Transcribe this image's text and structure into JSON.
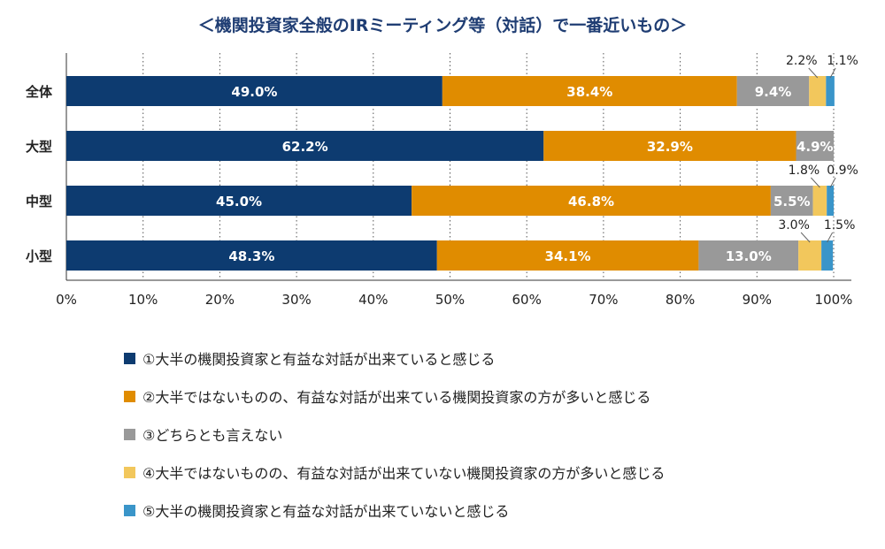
{
  "chart_data": {
    "type": "bar",
    "orientation": "horizontal",
    "stacked": true,
    "title": "＜機関投資家全般のIRミーティング等（対話）で一番近いもの＞",
    "categories": [
      "全体",
      "大型",
      "中型",
      "小型"
    ],
    "xlim": [
      0,
      100
    ],
    "xticks": [
      "0%",
      "10%",
      "20%",
      "30%",
      "40%",
      "50%",
      "60%",
      "70%",
      "80%",
      "90%",
      "100%"
    ],
    "grid": true,
    "legend_position": "bottom",
    "series": [
      {
        "name": "①大半の機関投資家と有益な対話が出来ていると感じる",
        "color": "#0d3b70",
        "values": [
          49.0,
          62.2,
          45.0,
          48.3
        ],
        "labels": [
          "49.0%",
          "62.2%",
          "45.0%",
          "48.3%"
        ]
      },
      {
        "name": "②大半ではないものの、有益な対話が出来ている機関投資家の方が多いと感じる",
        "color": "#e08c00",
        "values": [
          38.4,
          32.9,
          46.8,
          34.1
        ],
        "labels": [
          "38.4%",
          "32.9%",
          "46.8%",
          "34.1%"
        ]
      },
      {
        "name": "③どちらとも言えない",
        "color": "#999999",
        "values": [
          9.4,
          4.9,
          5.5,
          13.0
        ],
        "labels": [
          "9.4%",
          "4.9%",
          "5.5%",
          "13.0%"
        ]
      },
      {
        "name": "④大半ではないものの、有益な対話が出来ていない機関投資家の方が多いと感じる",
        "color": "#f2c75c",
        "values": [
          2.2,
          0,
          1.8,
          3.0
        ],
        "labels": [
          "2.2%",
          "",
          "1.8%",
          "3.0%"
        ]
      },
      {
        "name": "⑤大半の機関投資家と有益な対話が出来ていないと感じる",
        "color": "#3a95c9",
        "values": [
          1.1,
          0,
          0.9,
          1.5
        ],
        "labels": [
          "1.1%",
          "",
          "0.9%",
          "1.5%"
        ]
      }
    ]
  }
}
